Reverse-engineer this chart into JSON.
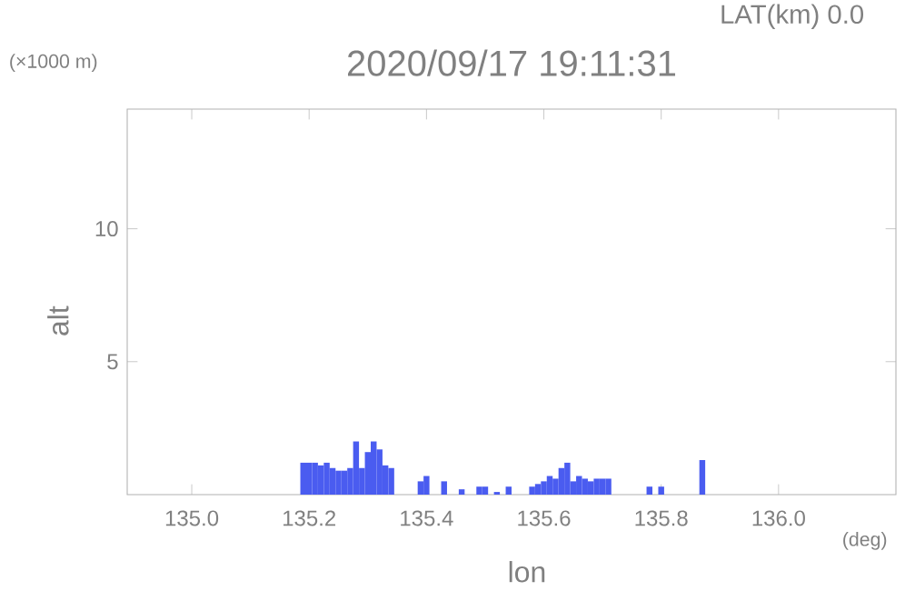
{
  "chart_data": {
    "type": "bar",
    "title": "2020/09/17 19:11:31",
    "subtitle": "LAT(km) 0.0",
    "xlabel": "lon",
    "ylabel": "alt",
    "annotations": [
      "(×1000 m)",
      "(deg)"
    ],
    "x": [
      135.19,
      135.2,
      135.21,
      135.22,
      135.23,
      135.24,
      135.25,
      135.26,
      135.27,
      135.28,
      135.29,
      135.3,
      135.31,
      135.32,
      135.33,
      135.34,
      135.39,
      135.4,
      135.43,
      135.46,
      135.49,
      135.5,
      135.52,
      135.54,
      135.58,
      135.59,
      135.6,
      135.61,
      135.62,
      135.63,
      135.64,
      135.65,
      135.66,
      135.67,
      135.68,
      135.69,
      135.7,
      135.71,
      135.78,
      135.8,
      135.87
    ],
    "values": [
      1.2,
      1.2,
      1.2,
      1.1,
      1.2,
      1.0,
      0.9,
      0.9,
      1.0,
      2.0,
      1.0,
      1.6,
      2.0,
      1.7,
      1.1,
      1.0,
      0.5,
      0.7,
      0.5,
      0.2,
      0.3,
      0.3,
      0.1,
      0.3,
      0.3,
      0.4,
      0.5,
      0.7,
      0.6,
      1.0,
      1.2,
      0.5,
      0.7,
      0.6,
      0.5,
      0.6,
      0.6,
      0.6,
      0.3,
      0.3,
      1.3
    ],
    "color": "#4a5cf0",
    "xlim": [
      134.89,
      136.2
    ],
    "ylim": [
      0,
      14.5
    ],
    "xticks": [
      {
        "value": 135.0,
        "label": "135.0"
      },
      {
        "value": 135.2,
        "label": "135.2"
      },
      {
        "value": 135.4,
        "label": "135.4"
      },
      {
        "value": 135.6,
        "label": "135.6"
      },
      {
        "value": 135.8,
        "label": "135.8"
      },
      {
        "value": 136.0,
        "label": "136.0"
      }
    ],
    "yticks": [
      5,
      10
    ]
  }
}
